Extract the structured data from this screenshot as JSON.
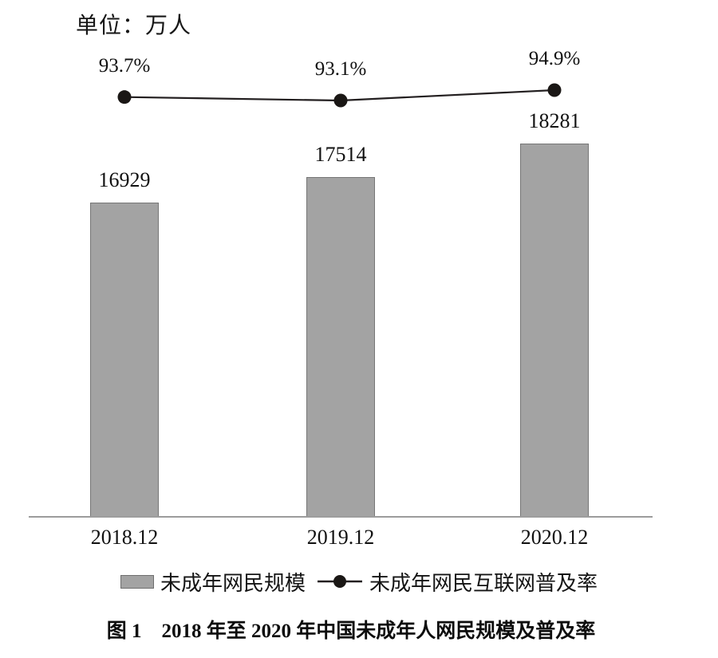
{
  "unit_label": "单位：万人",
  "legend": {
    "bar_label": "未成年网民规模",
    "line_label": "未成年网民互联网普及率"
  },
  "caption": "图 1　2018 年至 2020 年中国未成年人网民规模及普及率",
  "colors": {
    "bar_fill": "#a3a3a3",
    "bar_border": "#767676",
    "line": "#231f20",
    "dot": "#1a1715",
    "axis": "#9c9c9c",
    "text": "#111111"
  },
  "chart_data": {
    "type": "combo",
    "categories": [
      "2018.12",
      "2019.12",
      "2020.12"
    ],
    "series": [
      {
        "name": "未成年网民规模",
        "type": "bar",
        "unit": "万人",
        "values": [
          16929,
          17514,
          18281
        ],
        "value_labels": [
          "16929",
          "17514",
          "18281"
        ]
      },
      {
        "name": "未成年网民互联网普及率",
        "type": "line",
        "unit": "%",
        "values": [
          93.7,
          93.1,
          94.9
        ],
        "value_labels": [
          "93.7%",
          "93.1%",
          "94.9%"
        ]
      }
    ],
    "title": "图 1　2018 年至 2020 年中国未成年人网民规模及普及率",
    "unit_note": "单位：万人",
    "xlabel": "",
    "ylabel": "",
    "grid": false,
    "legend_position": "bottom",
    "bar_axis_implied_range_note": "bars not drawn from zero; axis unlabeled",
    "line_axis_implied_range": [
      93,
      95
    ]
  }
}
